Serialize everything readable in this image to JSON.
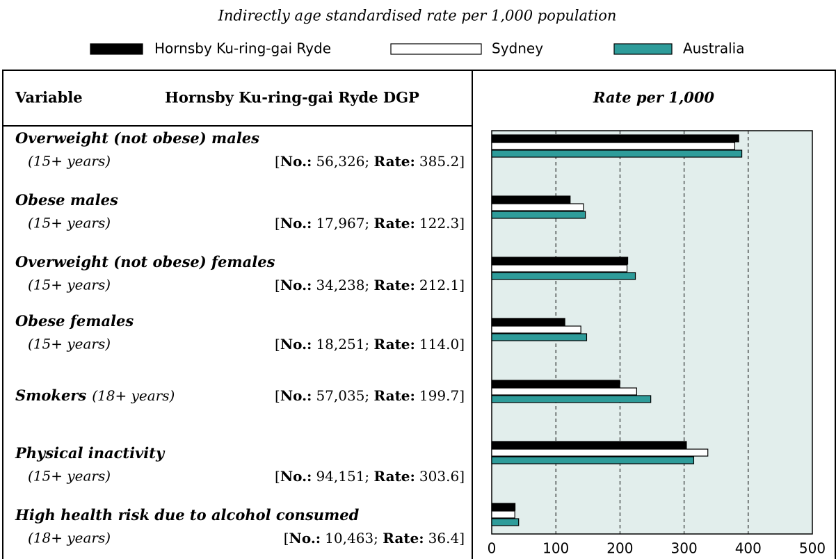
{
  "chart_data": {
    "type": "bar",
    "orientation": "horizontal",
    "title": "Indirectly age standardised rate per 1,000 population",
    "axis_title": "Rate per 1,000",
    "categories": [
      "Overweight (not obese) males",
      "Obese males",
      "Overweight (not obese) females",
      "Obese females",
      "Smokers",
      "Physical inactivity",
      "High health risk due to alcohol consumed"
    ],
    "series": [
      {
        "name": "Hornsby Ku-ring-gai Ryde",
        "color": "#000000",
        "values": [
          385.2,
          122.3,
          212.1,
          114.0,
          199.7,
          303.6,
          36.4
        ],
        "value_labels": [
          "385.2",
          "122.3",
          "212.1",
          "114.0",
          "199.7",
          "303.6",
          "36.4"
        ]
      },
      {
        "name": "Sydney",
        "color": "#ffffff",
        "values": [
          379,
          143,
          211,
          139,
          226,
          337,
          36
        ]
      },
      {
        "name": "Australia",
        "color": "#2e9c9a",
        "values": [
          390,
          146,
          224,
          148,
          248,
          315,
          42
        ]
      }
    ],
    "xlim": [
      0,
      500
    ],
    "xticks": [
      0,
      100,
      200,
      300,
      400,
      500
    ],
    "grid": true
  },
  "table": {
    "headers": [
      "Variable",
      "Hornsby Ku-ring-gai Ryde DGP"
    ],
    "number_label": "No.:",
    "rate_label": "Rate:",
    "rows": [
      {
        "age": "(15+ years)",
        "number": "56,326"
      },
      {
        "age": "(15+ years)",
        "number": "17,967"
      },
      {
        "age": "(15+ years)",
        "number": "34,238"
      },
      {
        "age": "(15+ years)",
        "number": "18,251"
      },
      {
        "age": "(18+ years)",
        "number": "57,035",
        "inline": true
      },
      {
        "age": "(15+ years)",
        "number": "94,151"
      },
      {
        "age": "(18+ years)",
        "number": "10,463"
      }
    ]
  }
}
